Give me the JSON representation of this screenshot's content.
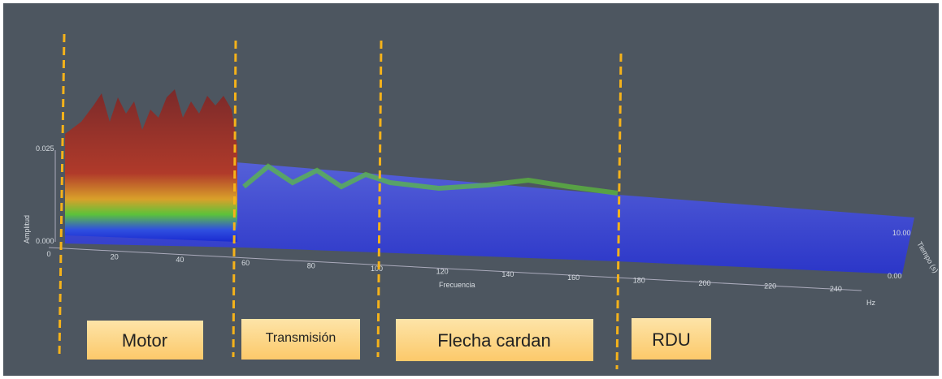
{
  "plot": {
    "y_axis_label": "Amplitud",
    "y_ticks": [
      "0.025",
      "0.000"
    ],
    "x_axis_label": "Frecuencia",
    "x_unit": "Hz",
    "x_ticks": [
      "0",
      "20",
      "40",
      "60",
      "80",
      "100",
      "120",
      "140",
      "160",
      "180",
      "200",
      "220",
      "240"
    ],
    "z_axis_label": "Tiempo (s)",
    "z_ticks": [
      "10.00",
      "0.00"
    ]
  },
  "regions": [
    "Motor",
    "Transmisión",
    "Flecha cardan",
    "RDU"
  ]
}
